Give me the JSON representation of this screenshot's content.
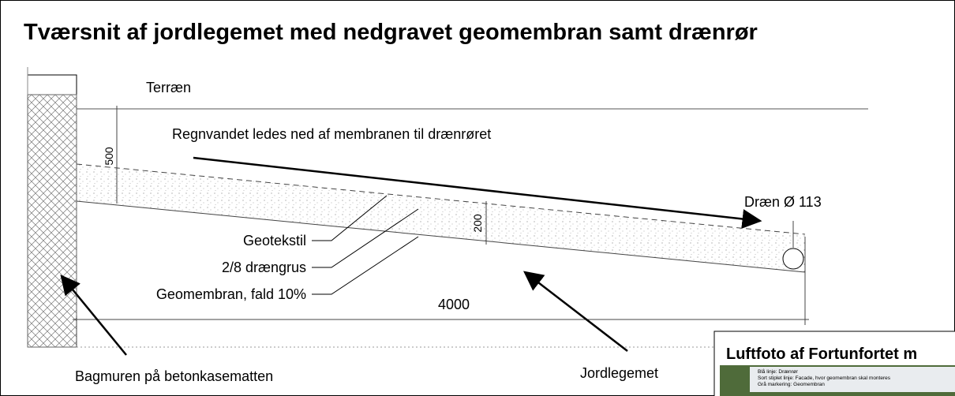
{
  "header": {
    "title": "Tværsnit af jordlegemet med nedgravet geomembran samt drænrør"
  },
  "drawing": {
    "terrain": "Terræn",
    "rain_note": "Regnvandet ledes ned af membranen til drænrøret",
    "dim_depth": "500",
    "dim_layer": "200",
    "dim_length": "4000",
    "drain": "Dræn Ø 113",
    "layers": [
      "Geotekstil",
      "2/8 drængrus",
      "Geomembran, fald 10%"
    ],
    "wall": "Bagmuren på betonkasematten",
    "soil": "Jordlegemet"
  },
  "inset": {
    "title": "Luftfoto af Fortunfortet m",
    "legend": [
      "Blå linje: Drænrør",
      "Sort stiplet linje: Facade, hvor geomembran skal monteres",
      "Grå markering: Geomembran"
    ]
  }
}
